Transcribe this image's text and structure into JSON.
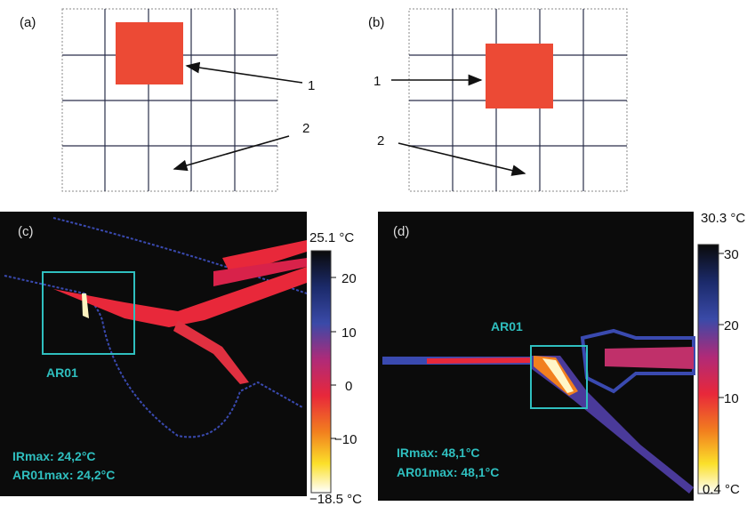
{
  "panels": [
    {
      "label": "(a)",
      "callouts": [
        "1",
        "2"
      ]
    },
    {
      "label": "(b)",
      "callouts": [
        "1",
        "2"
      ]
    },
    {
      "label": "(c)",
      "region": "AR01",
      "readouts": [
        "IRmax: 24,2°C",
        "AR01max: 24,2°C"
      ],
      "scale": {
        "max": "25.1 °C",
        "ticks": [
          "20",
          "10",
          "0",
          "−10"
        ],
        "min": "−18.5 °C"
      }
    },
    {
      "label": "(d)",
      "region": "AR01",
      "readouts": [
        "IRmax: 48,1°C",
        "AR01max: 48,1°C"
      ],
      "scale": {
        "max": "30.3 °C",
        "ticks": [
          "30",
          "20",
          "10"
        ],
        "min": "0.4 °C"
      }
    }
  ]
}
